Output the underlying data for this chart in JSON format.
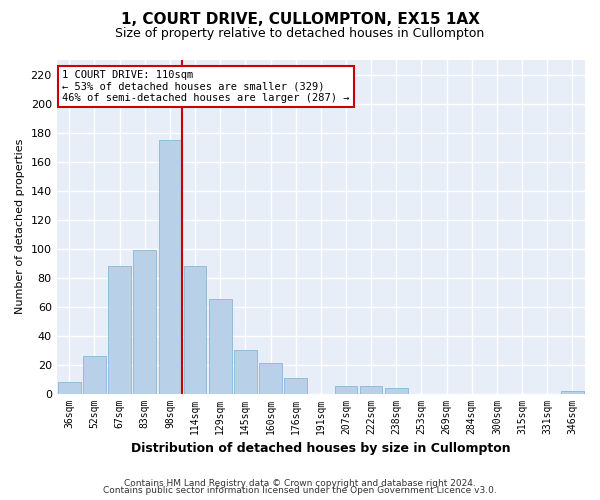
{
  "title": "1, COURT DRIVE, CULLOMPTON, EX15 1AX",
  "subtitle": "Size of property relative to detached houses in Cullompton",
  "xlabel": "Distribution of detached houses by size in Cullompton",
  "ylabel": "Number of detached properties",
  "footnote1": "Contains HM Land Registry data © Crown copyright and database right 2024.",
  "footnote2": "Contains public sector information licensed under the Open Government Licence v3.0.",
  "categories": [
    "36sqm",
    "52sqm",
    "67sqm",
    "83sqm",
    "98sqm",
    "114sqm",
    "129sqm",
    "145sqm",
    "160sqm",
    "176sqm",
    "191sqm",
    "207sqm",
    "222sqm",
    "238sqm",
    "253sqm",
    "269sqm",
    "284sqm",
    "300sqm",
    "315sqm",
    "331sqm",
    "346sqm"
  ],
  "values": [
    8,
    26,
    88,
    99,
    175,
    88,
    65,
    30,
    21,
    11,
    0,
    5,
    5,
    4,
    0,
    0,
    0,
    0,
    0,
    0,
    2
  ],
  "bar_color": "#b8d0e8",
  "bar_edge_color": "#7aafd4",
  "fig_bg_color": "#ffffff",
  "axes_bg_color": "#e8eef8",
  "grid_color": "#ffffff",
  "vline_color": "#cc0000",
  "vline_pos": 4.5,
  "annotation_line1": "1 COURT DRIVE: 110sqm",
  "annotation_line2": "← 53% of detached houses are smaller (329)",
  "annotation_line3": "46% of semi-detached houses are larger (287) →",
  "ann_box_fc": "#ffffff",
  "ann_box_ec": "#cc0000",
  "ylim_max": 230,
  "yticks": [
    0,
    20,
    40,
    60,
    80,
    100,
    120,
    140,
    160,
    180,
    200,
    220
  ]
}
